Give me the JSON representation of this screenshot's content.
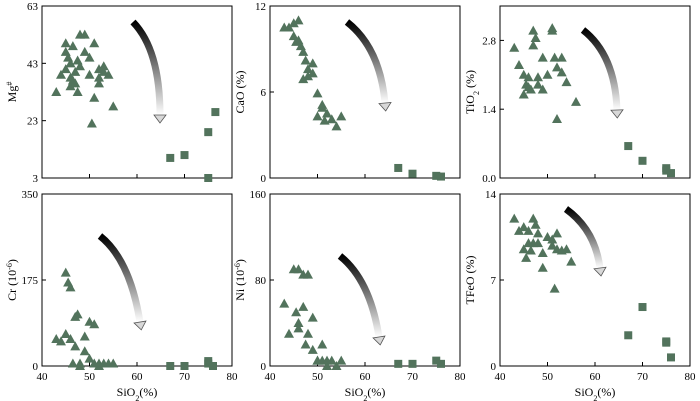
{
  "colors": {
    "marker": "#52735c",
    "axis": "#000000"
  },
  "chart_data": [
    {
      "type": "scatter",
      "xlabel": "",
      "ylabel": "Mg#",
      "xlim": [
        40,
        80
      ],
      "ylim": [
        3,
        63
      ],
      "xticks": [],
      "yticks": [
        "3",
        "23",
        "43",
        "63"
      ],
      "series": [
        {
          "marker": "triangle",
          "points": [
            [
              43,
              33
            ],
            [
              44,
              39
            ],
            [
              45,
              47
            ],
            [
              45,
              50
            ],
            [
              45.5,
              45
            ],
            [
              45,
              41
            ],
            [
              46,
              43
            ],
            [
              46,
              38
            ],
            [
              46,
              35
            ],
            [
              46.5,
              49
            ],
            [
              47,
              40
            ],
            [
              47,
              36
            ],
            [
              47.5,
              44
            ],
            [
              47.5,
              33
            ],
            [
              48,
              53
            ],
            [
              48,
              42
            ],
            [
              49,
              53
            ],
            [
              49,
              47
            ],
            [
              50,
              45
            ],
            [
              50,
              39
            ],
            [
              51,
              50
            ],
            [
              51,
              31
            ],
            [
              52,
              41
            ],
            [
              52,
              38
            ],
            [
              52,
              36
            ],
            [
              53,
              42
            ],
            [
              53,
              40
            ],
            [
              54,
              39
            ],
            [
              55,
              28
            ],
            [
              50.5,
              22
            ],
            [
              46.5,
              37
            ]
          ]
        },
        {
          "marker": "square",
          "points": [
            [
              67,
              10
            ],
            [
              70,
              11
            ],
            [
              75,
              19
            ],
            [
              76.5,
              26
            ],
            [
              75,
              3
            ]
          ]
        }
      ]
    },
    {
      "type": "scatter",
      "xlabel": "",
      "ylabel": "CaO (%)",
      "xlim": [
        40,
        80
      ],
      "ylim": [
        0,
        12
      ],
      "xticks": [],
      "yticks": [
        "0",
        "6",
        "12"
      ],
      "series": [
        {
          "marker": "triangle",
          "points": [
            [
              43,
              10.5
            ],
            [
              44,
              10.5
            ],
            [
              45,
              10.8
            ],
            [
              45,
              9.9
            ],
            [
              45.5,
              9.5
            ],
            [
              46,
              11
            ],
            [
              46,
              9.6
            ],
            [
              46.5,
              9.2
            ],
            [
              47,
              8.8
            ],
            [
              47,
              6.9
            ],
            [
              47.5,
              8.2
            ],
            [
              48,
              7.6
            ],
            [
              48,
              7.1
            ],
            [
              49,
              8
            ],
            [
              49,
              7.3
            ],
            [
              50,
              5.9
            ],
            [
              50,
              4.3
            ],
            [
              51,
              5.1
            ],
            [
              51,
              4.9
            ],
            [
              51.5,
              4
            ],
            [
              52,
              4.5
            ],
            [
              53,
              4.1
            ],
            [
              54,
              3.6
            ],
            [
              55,
              4.3
            ]
          ]
        },
        {
          "marker": "square",
          "points": [
            [
              67,
              0.7
            ],
            [
              70,
              0.3
            ],
            [
              75,
              0.15
            ],
            [
              76,
              0.1
            ]
          ]
        }
      ]
    },
    {
      "type": "scatter",
      "xlabel": "",
      "ylabel": "TiO2 (%)",
      "xlim": [
        40,
        80
      ],
      "ylim": [
        0,
        3.5
      ],
      "xticks": [],
      "yticks": [
        "0.0",
        "1.4",
        "2.8"
      ],
      "series": [
        {
          "marker": "triangle",
          "points": [
            [
              43,
              2.65
            ],
            [
              44,
              2.3
            ],
            [
              45,
              2.1
            ],
            [
              45,
              1.7
            ],
            [
              45.5,
              1.9
            ],
            [
              46,
              2.05
            ],
            [
              46,
              1.85
            ],
            [
              46.5,
              1.8
            ],
            [
              47,
              3
            ],
            [
              47,
              2.7
            ],
            [
              47.5,
              2.85
            ],
            [
              48,
              2.05
            ],
            [
              48,
              1.9
            ],
            [
              49,
              2.45
            ],
            [
              49,
              1.8
            ],
            [
              50,
              2.1
            ],
            [
              51,
              3.05
            ],
            [
              51,
              3
            ],
            [
              51.5,
              2.45
            ],
            [
              52,
              2.25
            ],
            [
              52,
              1.2
            ],
            [
              53,
              2.45
            ],
            [
              53,
              2.15
            ],
            [
              54,
              1.95
            ],
            [
              56,
              1.55
            ]
          ]
        },
        {
          "marker": "square",
          "points": [
            [
              67,
              0.65
            ],
            [
              70,
              0.35
            ],
            [
              75,
              0.2
            ],
            [
              76,
              0.1
            ],
            [
              75,
              0.15
            ]
          ]
        }
      ]
    },
    {
      "type": "scatter",
      "xlabel": "SiO2(%)",
      "ylabel": "Cr (10-6)",
      "xlim": [
        40,
        80
      ],
      "ylim": [
        0,
        350
      ],
      "xticks": [
        "40",
        "50",
        "60",
        "70",
        "80"
      ],
      "yticks": [
        "0",
        "175",
        "350"
      ],
      "series": [
        {
          "marker": "triangle",
          "points": [
            [
              43,
              55
            ],
            [
              44,
              50
            ],
            [
              45,
              190
            ],
            [
              45,
              65
            ],
            [
              45.5,
              170
            ],
            [
              46,
              160
            ],
            [
              46,
              55
            ],
            [
              46.5,
              5
            ],
            [
              47,
              40
            ],
            [
              47,
              100
            ],
            [
              47.5,
              105
            ],
            [
              48,
              5
            ],
            [
              48,
              0
            ],
            [
              49,
              60
            ],
            [
              49,
              30
            ],
            [
              50,
              90
            ],
            [
              50,
              15
            ],
            [
              51,
              85
            ],
            [
              51,
              5
            ],
            [
              52,
              0
            ],
            [
              52,
              5
            ],
            [
              53,
              5
            ],
            [
              54,
              5
            ],
            [
              55,
              5
            ]
          ]
        },
        {
          "marker": "square",
          "points": [
            [
              67,
              0
            ],
            [
              70,
              0
            ],
            [
              75,
              5
            ],
            [
              75,
              10
            ],
            [
              76,
              0
            ]
          ]
        }
      ]
    },
    {
      "type": "scatter",
      "xlabel": "SiO2(%)",
      "ylabel": "Ni (10-6)",
      "xlim": [
        40,
        80
      ],
      "ylim": [
        0,
        160
      ],
      "xticks": [
        "40",
        "50",
        "60",
        "70",
        "80"
      ],
      "yticks": [
        "0",
        "80",
        "160"
      ],
      "series": [
        {
          "marker": "triangle",
          "points": [
            [
              43,
              58
            ],
            [
              44,
              30
            ],
            [
              45,
              90
            ],
            [
              45.5,
              50
            ],
            [
              46,
              90
            ],
            [
              46,
              40
            ],
            [
              46,
              35
            ],
            [
              47,
              85
            ],
            [
              47,
              55
            ],
            [
              47.5,
              20
            ],
            [
              48,
              85
            ],
            [
              48,
              30
            ],
            [
              49,
              45
            ],
            [
              49,
              15
            ],
            [
              50,
              5
            ],
            [
              50,
              5
            ],
            [
              51,
              20
            ],
            [
              51,
              5
            ],
            [
              52,
              5
            ],
            [
              52,
              0
            ],
            [
              53,
              5
            ],
            [
              54,
              0
            ],
            [
              55,
              5
            ]
          ]
        },
        {
          "marker": "square",
          "points": [
            [
              67,
              2
            ],
            [
              70,
              2
            ],
            [
              75,
              5
            ],
            [
              76,
              2
            ]
          ]
        }
      ]
    },
    {
      "type": "scatter",
      "xlabel": "SiO2(%)",
      "ylabel": "TFeO (%)",
      "xlim": [
        40,
        80
      ],
      "ylim": [
        0,
        14
      ],
      "xticks": [
        "40",
        "50",
        "60",
        "70",
        "80"
      ],
      "yticks": [
        "0",
        "7",
        "14"
      ],
      "series": [
        {
          "marker": "triangle",
          "points": [
            [
              43,
              12
            ],
            [
              44,
              11
            ],
            [
              45,
              9.5
            ],
            [
              45,
              11.3
            ],
            [
              45.5,
              8.8
            ],
            [
              46,
              11
            ],
            [
              46,
              10
            ],
            [
              46.5,
              9.4
            ],
            [
              47,
              12
            ],
            [
              47,
              10
            ],
            [
              47.5,
              11.5
            ],
            [
              48,
              10.8
            ],
            [
              48,
              10
            ],
            [
              49,
              8
            ],
            [
              49,
              9.2
            ],
            [
              50,
              10.5
            ],
            [
              51,
              10.3
            ],
            [
              51,
              9.8
            ],
            [
              51.5,
              6.3
            ],
            [
              52,
              10.8
            ],
            [
              52,
              9.5
            ],
            [
              53,
              9.4
            ],
            [
              54,
              9.5
            ],
            [
              55,
              8.5
            ]
          ]
        },
        {
          "marker": "square",
          "points": [
            [
              67,
              2.5
            ],
            [
              70,
              4.8
            ],
            [
              75,
              1.9
            ],
            [
              75,
              2
            ],
            [
              76,
              0.7
            ]
          ]
        }
      ]
    }
  ]
}
